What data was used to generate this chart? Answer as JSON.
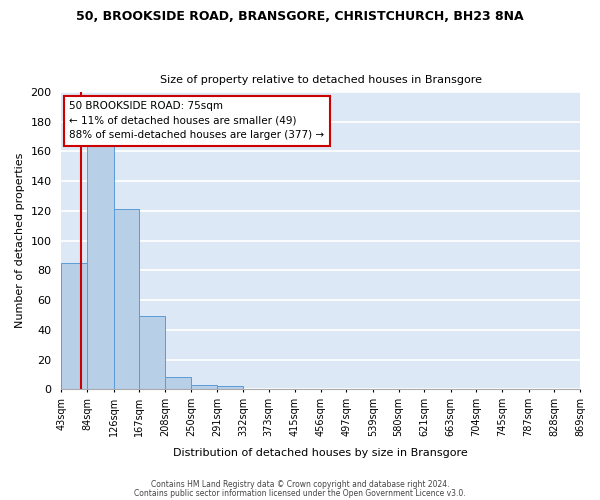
{
  "title": "50, BROOKSIDE ROAD, BRANSGORE, CHRISTCHURCH, BH23 8NA",
  "subtitle": "Size of property relative to detached houses in Bransgore",
  "xlabel": "Distribution of detached houses by size in Bransgore",
  "ylabel": "Number of detached properties",
  "bar_edges": [
    43,
    84,
    126,
    167,
    208,
    250,
    291,
    332,
    373,
    415,
    456,
    497,
    539,
    580,
    621,
    663,
    704,
    745,
    787,
    828,
    869
  ],
  "bar_values": [
    85,
    166,
    121,
    49,
    8,
    3,
    2,
    0,
    0,
    0,
    0,
    0,
    0,
    0,
    0,
    0,
    0,
    0,
    0,
    0
  ],
  "bar_color": "#b8cfe8",
  "bar_edgecolor": "#5b9bd5",
  "bg_color": "#dce8f5",
  "fig_color": "#ffffff",
  "grid_color": "#ffffff",
  "annotation_box_edgecolor": "#cc0000",
  "annotation_line_color": "#cc0000",
  "property_line_x": 75,
  "annotation_title": "50 BROOKSIDE ROAD: 75sqm",
  "annotation_line1": "← 11% of detached houses are smaller (49)",
  "annotation_line2": "88% of semi-detached houses are larger (377) →",
  "ylim": [
    0,
    200
  ],
  "yticks": [
    0,
    20,
    40,
    60,
    80,
    100,
    120,
    140,
    160,
    180,
    200
  ],
  "footer1": "Contains HM Land Registry data © Crown copyright and database right 2024.",
  "footer2": "Contains public sector information licensed under the Open Government Licence v3.0."
}
